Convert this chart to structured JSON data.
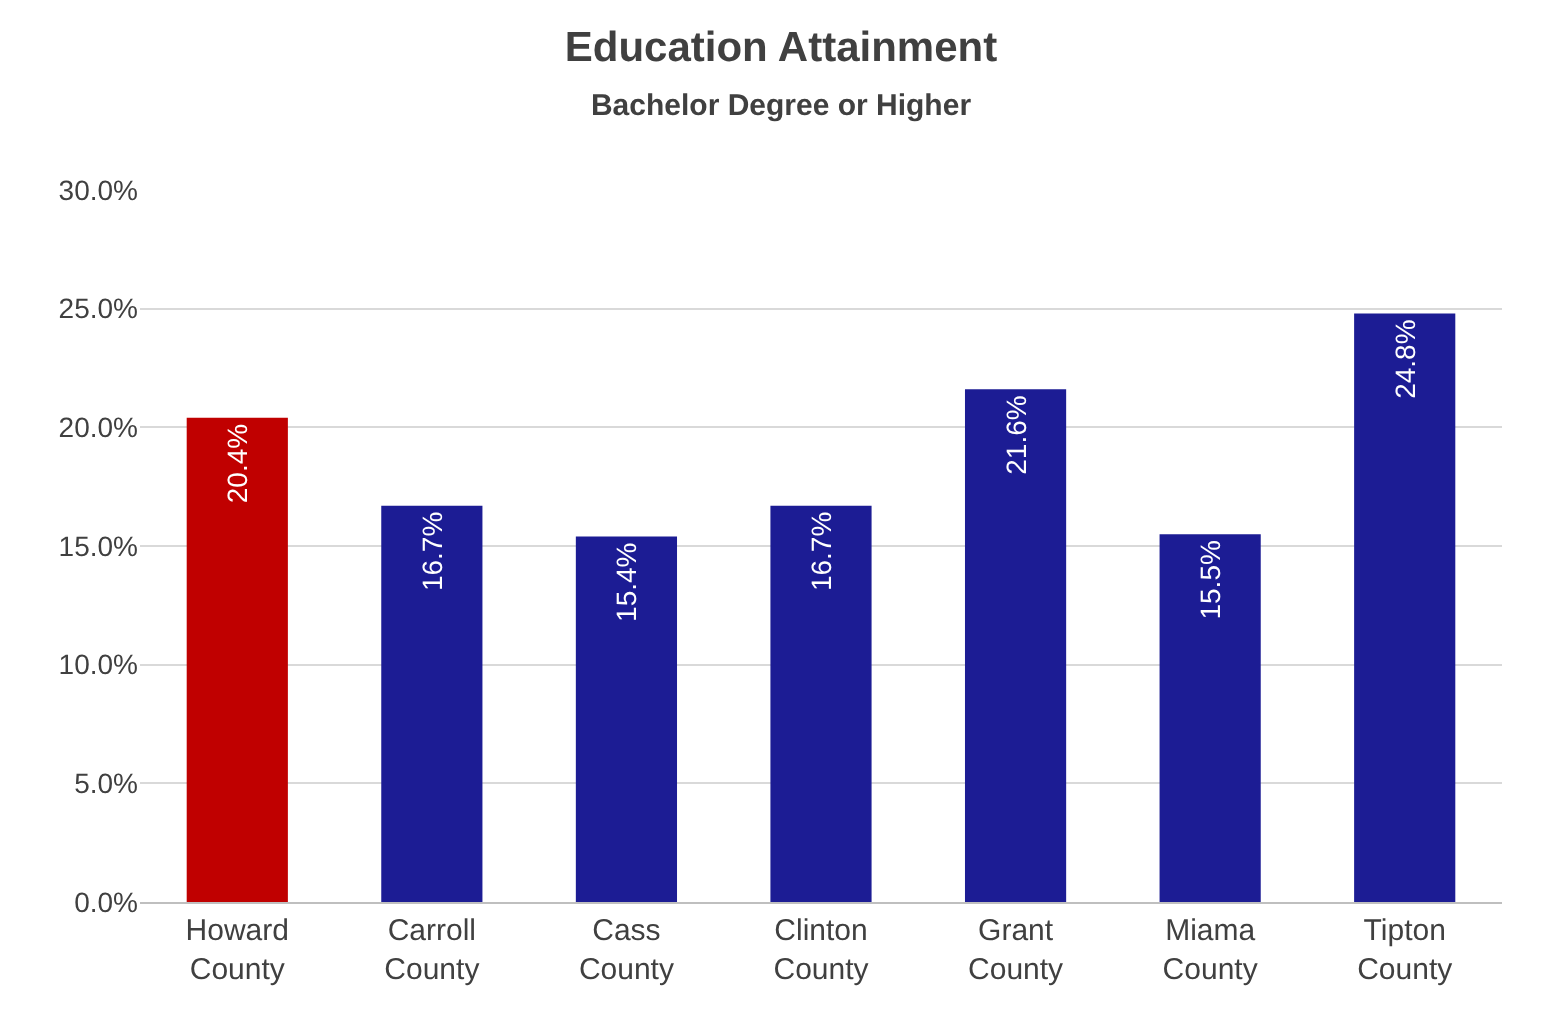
{
  "chart_data": {
    "type": "bar",
    "title": "Education Attainment",
    "subtitle": "Bachelor Degree or Higher",
    "categories": [
      "Howard County",
      "Carroll County",
      "Cass County",
      "Clinton County",
      "Grant County",
      "Miama County",
      "Tipton County"
    ],
    "values": [
      20.4,
      16.7,
      15.4,
      16.7,
      21.6,
      15.5,
      24.8
    ],
    "value_labels": [
      "20.4%",
      "16.7%",
      "15.4%",
      "16.7%",
      "21.6%",
      "15.5%",
      "24.8%"
    ],
    "colors": [
      "#c00000",
      "#1c1c94",
      "#1c1c94",
      "#1c1c94",
      "#1c1c94",
      "#1c1c94",
      "#1c1c94"
    ],
    "ylim": [
      0,
      30
    ],
    "yticks": [
      {
        "value": 0,
        "label": "0.0%"
      },
      {
        "value": 5,
        "label": "5.0%"
      },
      {
        "value": 10,
        "label": "10.0%"
      },
      {
        "value": 15,
        "label": "15.0%"
      },
      {
        "value": 20,
        "label": "20.0%"
      },
      {
        "value": 25,
        "label": "25.0%"
      },
      {
        "value": 30,
        "label": "30.0%"
      }
    ],
    "grid": "y",
    "legend": false
  }
}
